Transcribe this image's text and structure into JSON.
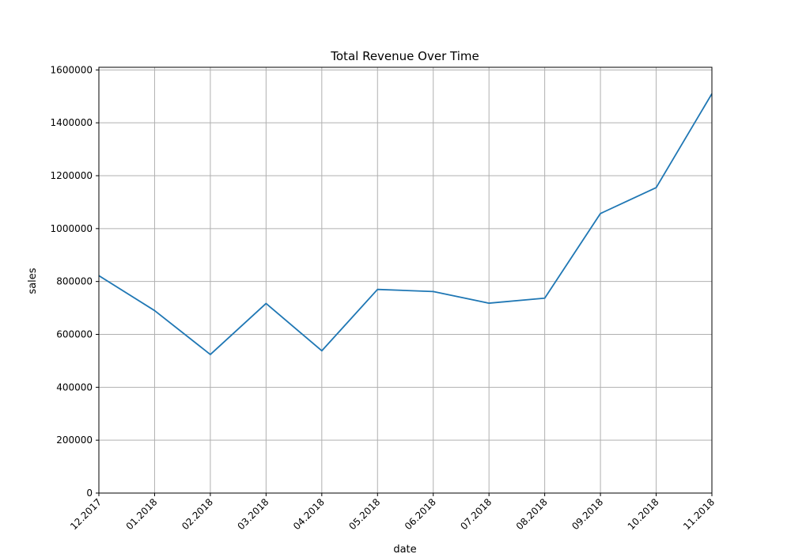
{
  "chart_data": {
    "type": "line",
    "title": "Total Revenue Over Time",
    "xlabel": "date",
    "ylabel": "sales",
    "categories": [
      "12.2017",
      "01.2018",
      "02.2018",
      "03.2018",
      "04.2018",
      "05.2018",
      "06.2018",
      "07.2018",
      "08.2018",
      "09.2018",
      "10.2018",
      "11.2018"
    ],
    "series": [
      {
        "values": [
          822000,
          690000,
          524000,
          717000,
          538000,
          770000,
          762000,
          718000,
          737000,
          1057000,
          1155000,
          1510000
        ],
        "color": "#1f77b4"
      }
    ],
    "ylim": [
      0,
      1610000
    ],
    "yticks": [
      0,
      200000,
      400000,
      600000,
      800000,
      1000000,
      1200000,
      1400000,
      1600000
    ],
    "ytick_labels": [
      "0",
      "200000",
      "400000",
      "600000",
      "800000",
      "1000000",
      "1200000",
      "1400000",
      "1600000"
    ],
    "grid": true,
    "x_tick_rotation": 45
  }
}
